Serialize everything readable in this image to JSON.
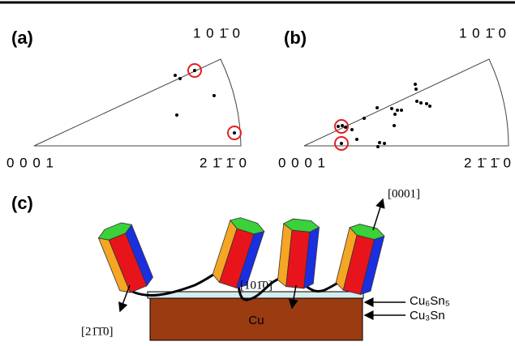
{
  "panel_a": {
    "label": "(a)",
    "pole_top": "1 0 1̄ 0",
    "pole_origin": "0 0 0 1",
    "pole_right": "2 1̄ 1̄ 0"
  },
  "panel_b": {
    "label": "(b)",
    "pole_top": "1 0 1̄ 0",
    "pole_origin": "0 0 0 1",
    "pole_right": "2 1̄ 1̄ 0"
  },
  "panel_c": {
    "label": "(c)",
    "dir_c": "[0001]",
    "dir_m": "[101̄0]",
    "dir_a": "[21̄1̄0]",
    "layer_top": "Cu₆Sn₅",
    "layer_bottom": "Cu₃Sn",
    "substrate": "Cu"
  }
}
